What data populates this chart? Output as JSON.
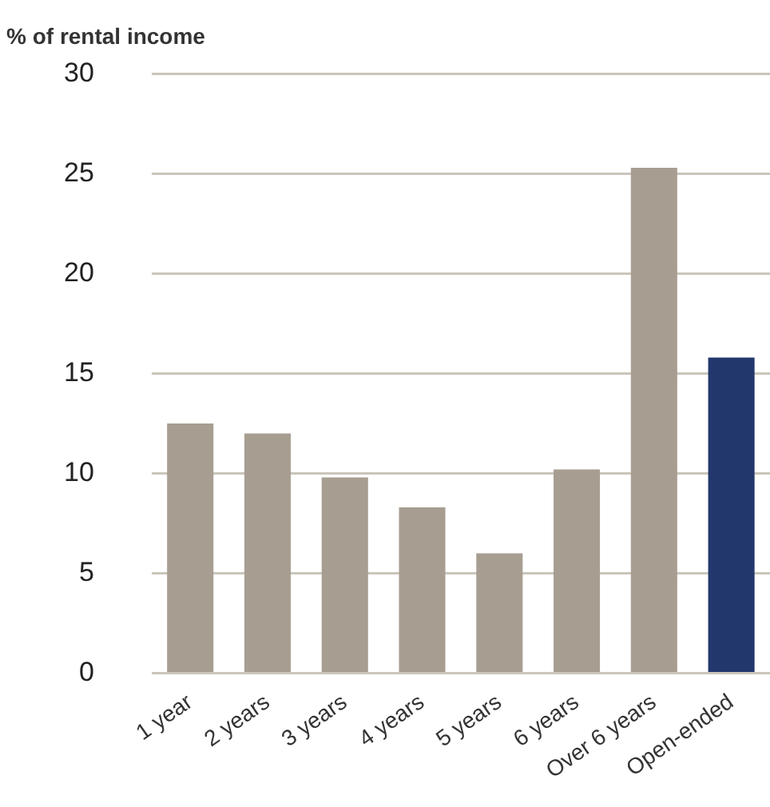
{
  "chart_data": {
    "type": "bar",
    "ylabel": "% of rental income",
    "categories": [
      "1 year",
      "2 years",
      "3 years",
      "4 years",
      "5 years",
      "6 years",
      "Over 6 years",
      "Open-ended"
    ],
    "values": [
      12.5,
      12.0,
      9.8,
      8.3,
      6.0,
      10.2,
      25.3,
      15.8
    ],
    "colors": [
      "#a79e91",
      "#a79e91",
      "#a79e91",
      "#a79e91",
      "#a79e91",
      "#a79e91",
      "#a79e91",
      "#22376c"
    ],
    "ylim": [
      0,
      30
    ],
    "yticks": [
      0,
      5,
      10,
      15,
      20,
      25,
      30
    ],
    "grid": "y",
    "legend": false
  }
}
